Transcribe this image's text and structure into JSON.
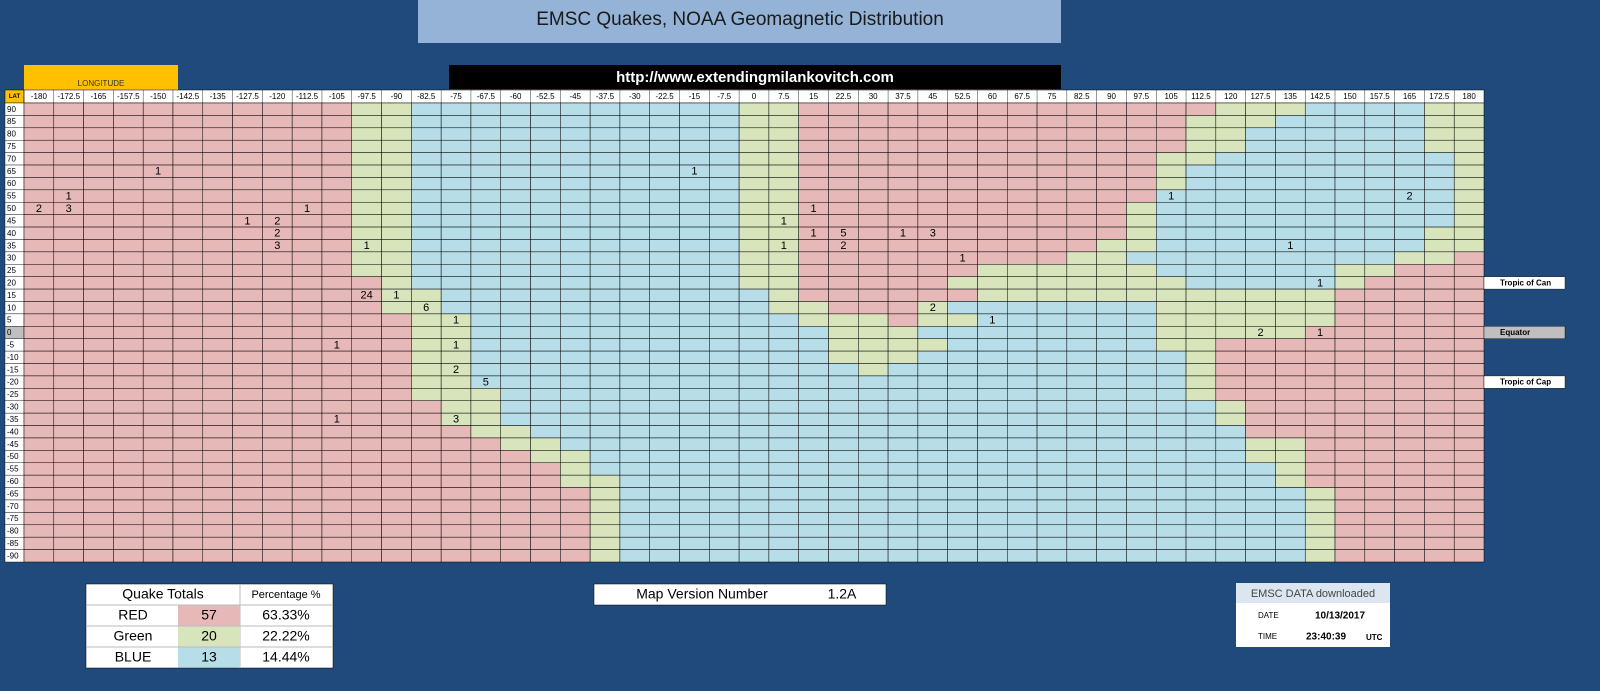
{
  "header": {
    "title": "EMSC Quakes, NOAA Geomagnetic Distribution",
    "longitude_label": "LONGITUDE",
    "url": "http://www.extendingmilankovitch.com",
    "corner_label": "LAT"
  },
  "grid": {
    "longitudes": [
      -180,
      -172.5,
      -165,
      -157.5,
      -150,
      -142.5,
      -135,
      -127.5,
      -120,
      -112.5,
      -105,
      -97.5,
      -90,
      -82.5,
      -75,
      -67.5,
      -60,
      -52.5,
      -45,
      -37.5,
      -30,
      -22.5,
      -15,
      -7.5,
      0,
      7.5,
      15,
      22.5,
      30,
      37.5,
      45,
      52.5,
      60,
      67.5,
      75,
      82.5,
      90,
      97.5,
      105,
      112.5,
      120,
      127.5,
      135,
      142.5,
      150,
      157.5,
      165,
      172.5,
      180
    ],
    "latitudes": [
      90,
      85,
      80,
      75,
      70,
      65,
      60,
      55,
      50,
      45,
      40,
      35,
      30,
      25,
      20,
      15,
      10,
      5,
      0,
      -5,
      -10,
      -15,
      -20,
      -25,
      -30,
      -35,
      -40,
      -45,
      -50,
      -55,
      -60,
      -65,
      -70,
      -75,
      -80,
      -85,
      -90
    ],
    "zone_colors": {
      "R": "#e6b8b7",
      "G": "#d8e4bc",
      "B": "#b7dee8"
    },
    "zones": [
      "RRRRRRRRRRRGGBBBBBBBBBBBGGRRRRRRRRRRRRRRGGGBBBBGG",
      "RRRRRRRRRRRGGBBBBBBBBBBBGGRRRRRRRRRRRRRGGGBBBBBGG",
      "RRRRRRRRRRRGGBBBBBBBBBBBGGRRRRRRRRRRRRRGGBBBBBBGG",
      "RRRRRRRRRRRGGBBBBBBBBBBBGGRRRRRRRRRRRRRGGBBBBBBGG",
      "RRRRRRRRRRRGGBBBBBBBBBBBGGRRRRRRRRRRRRGGBBBBBBBBG",
      "RRRRRRRRRRRGGBBBBBBBBBBBGGRRRRRRRRRRRRGBBBBBBBBBG",
      "RRRRRRRRRRRGGBBBBBBBBBBBGGRRRRRRRRRRRRGBBBBBBBBBG",
      "RRRRRRRRRRRGGBBBBBBBBBBBGGRRRRRRRRRRRRBBBBBBBBBBG",
      "RRRRRRRRRRRGGBBBBBBBBBBBGGRRRRRRRRRRRGBBBBBBBBBBG",
      "RRRRRRRRRRRGGBBBBBBBBBBBGGRRRRRRRRRRRGBBBBBBBBBBG",
      "RRRRRRRRRRRGGBBBBBBBBBBBGGRRRRRRRRRRRGBBBBBBBBBGG",
      "RRRRRRRRRRRGGBBBBBBBBBBBGGRRRRRRRRRRGGBBBBBBBBBGG",
      "RRRRRRRRRRRGGBBBBBBBBBBBGGRRRRRRRRRGGBBBBBBBBBGGR",
      "RRRRRRRRRRRGGBBBBBBBBBBBGGRRRRRRGGGGGGBBBBBBGGRRR",
      "RRRRRRRRRRRRGBBBBBBBBBBBGGRRRRRGGGGGGGGBBBBBGRRRR",
      "RRRRRRRRRRRRGGBBBBBBBBBBBGRRRRRRGGGGGGGGGGGGRRRRR",
      "RRRRRRRRRRRRGGBBBBBBBBBBBGGRRRGBBBBBBBGGGGGGRRRRR",
      "RRRRRRRRRRRRRGGBBBBBBBBBBBGGGRGGBBBBBBGGGGGGRRRRR",
      "RRRRRRRRRRRRRGGBBBBBBBBBBBBGGGBBBBBBBBGGGGGRRRRRR",
      "RRRRRRRRRRRRRGGBBBBBBBBBBBBGGGGBBBBBBBGGRRRRRRRRR",
      "RRRRRRRRRRRRRGGBBBBBBBBBBBBGGGBBBBBBBBBGRRRRRRRRR",
      "RRRRRRRRRRRRRGGBBBBBBBBBBBBBGBBBBBBBBBBGRRRRRRRRR",
      "RRRRRRRRRRRRRGGBBBBBBBBBBBBBBBBBBBBBBBBGRRRRRRRRR",
      "RRRRRRRRRRRRRGGGBBBBBBBBBBBBBBBBBBBBBBBGRRRRRRRRR",
      "RRRRRRRRRRRRRRGGBBBBBBBBBBBBBBBBBBBBBBBBGRRRRRRRR",
      "RRRRRRRRRRRRRRGGBBBBBBBBBBBBBBBBBBBBBBBBGRRRRRRRR",
      "RRRRRRRRRRRRRRRGGBBBBBBBBBBBBBBBBBBBBBBBBRRRRRRRR",
      "RRRRRRRRRRRRRRRRGGBBBBBBBBBBBBBBBBBBBBBBBGGRRRRRR",
      "RRRRRRRRRRRRRRRRRGGBBBBBBBBBBBBBBBBBBBBBBGGRRRRRR",
      "RRRRRRRRRRRRRRRRRRGBBBBBBBBBBBBBBBBBBBBBBBGRRRRRR",
      "RRRRRRRRRRRRRRRRRRGGBBBBBBBBBBBBBBBBBBBBBBGRRRRRR",
      "RRRRRRRRRRRRRRRRRRRGBBBBBBBBBBBBBBBBBBBBBBBGRRRRR",
      "RRRRRRRRRRRRRRRRRRRGBBBBBBBBBBBBBBBBBBBBBBBGRRRRR",
      "RRRRRRRRRRRRRRRRRRRGBBBBBBBBBBBBBBBBBBBBBBBGRRRRR",
      "RRRRRRRRRRRRRRRRRRRGBBBBBBBBBBBBBBBBBBBBBBBGRRRRR",
      "RRRRRRRRRRRRRRRRRRRGBBBBBBBBBBBBBBBBBBBBBBBGRRRRR",
      "RRRRRRRRRRRRRRRRRRRGBBBBBBBBBBBBBBBBBBBBBBBGRRRRR"
    ],
    "counts": [
      {
        "lat": 65,
        "lon": -150,
        "count": 1
      },
      {
        "lat": 65,
        "lon": -15,
        "count": 1
      },
      {
        "lat": 55,
        "lon": -172.5,
        "count": 1
      },
      {
        "lat": 55,
        "lon": 105,
        "count": 1
      },
      {
        "lat": 55,
        "lon": 165,
        "count": 2
      },
      {
        "lat": 50,
        "lon": -180,
        "count": 2
      },
      {
        "lat": 50,
        "lon": -172.5,
        "count": 3
      },
      {
        "lat": 50,
        "lon": -112.5,
        "count": 1
      },
      {
        "lat": 50,
        "lon": 15,
        "count": 1
      },
      {
        "lat": 45,
        "lon": -127.5,
        "count": 1
      },
      {
        "lat": 45,
        "lon": -120,
        "count": 2
      },
      {
        "lat": 45,
        "lon": 7.5,
        "count": 1
      },
      {
        "lat": 40,
        "lon": -120,
        "count": 2
      },
      {
        "lat": 40,
        "lon": 15,
        "count": 1
      },
      {
        "lat": 40,
        "lon": 22.5,
        "count": 5
      },
      {
        "lat": 40,
        "lon": 37.5,
        "count": 1
      },
      {
        "lat": 40,
        "lon": 45,
        "count": 3
      },
      {
        "lat": 35,
        "lon": -120,
        "count": 3
      },
      {
        "lat": 35,
        "lon": -97.5,
        "count": 1
      },
      {
        "lat": 35,
        "lon": 7.5,
        "count": 1
      },
      {
        "lat": 35,
        "lon": 22.5,
        "count": 2
      },
      {
        "lat": 35,
        "lon": 135,
        "count": 1
      },
      {
        "lat": 30,
        "lon": 52.5,
        "count": 1
      },
      {
        "lat": 20,
        "lon": 142.5,
        "count": 1
      },
      {
        "lat": 15,
        "lon": -97.5,
        "count": 24
      },
      {
        "lat": 15,
        "lon": -90,
        "count": 1
      },
      {
        "lat": 10,
        "lon": -82.5,
        "count": 6
      },
      {
        "lat": 10,
        "lon": 45,
        "count": 2
      },
      {
        "lat": 5,
        "lon": -75,
        "count": 1
      },
      {
        "lat": 5,
        "lon": 60,
        "count": 1
      },
      {
        "lat": 0,
        "lon": 127.5,
        "count": 2
      },
      {
        "lat": 0,
        "lon": 142.5,
        "count": 1
      },
      {
        "lat": -5,
        "lon": -105,
        "count": 1
      },
      {
        "lat": -5,
        "lon": -75,
        "count": 1
      },
      {
        "lat": -15,
        "lon": -75,
        "count": 2
      },
      {
        "lat": -20,
        "lon": -67.5,
        "count": 5
      },
      {
        "lat": -35,
        "lon": -105,
        "count": 1
      },
      {
        "lat": -35,
        "lon": -75,
        "count": 3
      }
    ]
  },
  "annotations": [
    {
      "lat": 20,
      "label": "Tropic of Can"
    },
    {
      "lat": 0,
      "label": "Equator"
    },
    {
      "lat": -20,
      "label": "Tropic of Cap"
    }
  ],
  "totals": {
    "headers": [
      "Quake Totals",
      "Percentage %"
    ],
    "rows": [
      {
        "label": "RED",
        "count": 57,
        "percent": "63.33%",
        "color": "#e6b8b7"
      },
      {
        "label": "Green",
        "count": 20,
        "percent": "22.22%",
        "color": "#d8e4bc"
      },
      {
        "label": "BLUE",
        "count": 13,
        "percent": "14.44%",
        "color": "#b7dee8"
      }
    ]
  },
  "map_version": {
    "label": "Map Version Number",
    "value": "1.2A"
  },
  "download": {
    "title": "EMSC DATA downloaded",
    "date_label": "DATE",
    "date": "10/13/2017",
    "time_label": "TIME",
    "time": "23:40:39",
    "tz": "UTC"
  }
}
